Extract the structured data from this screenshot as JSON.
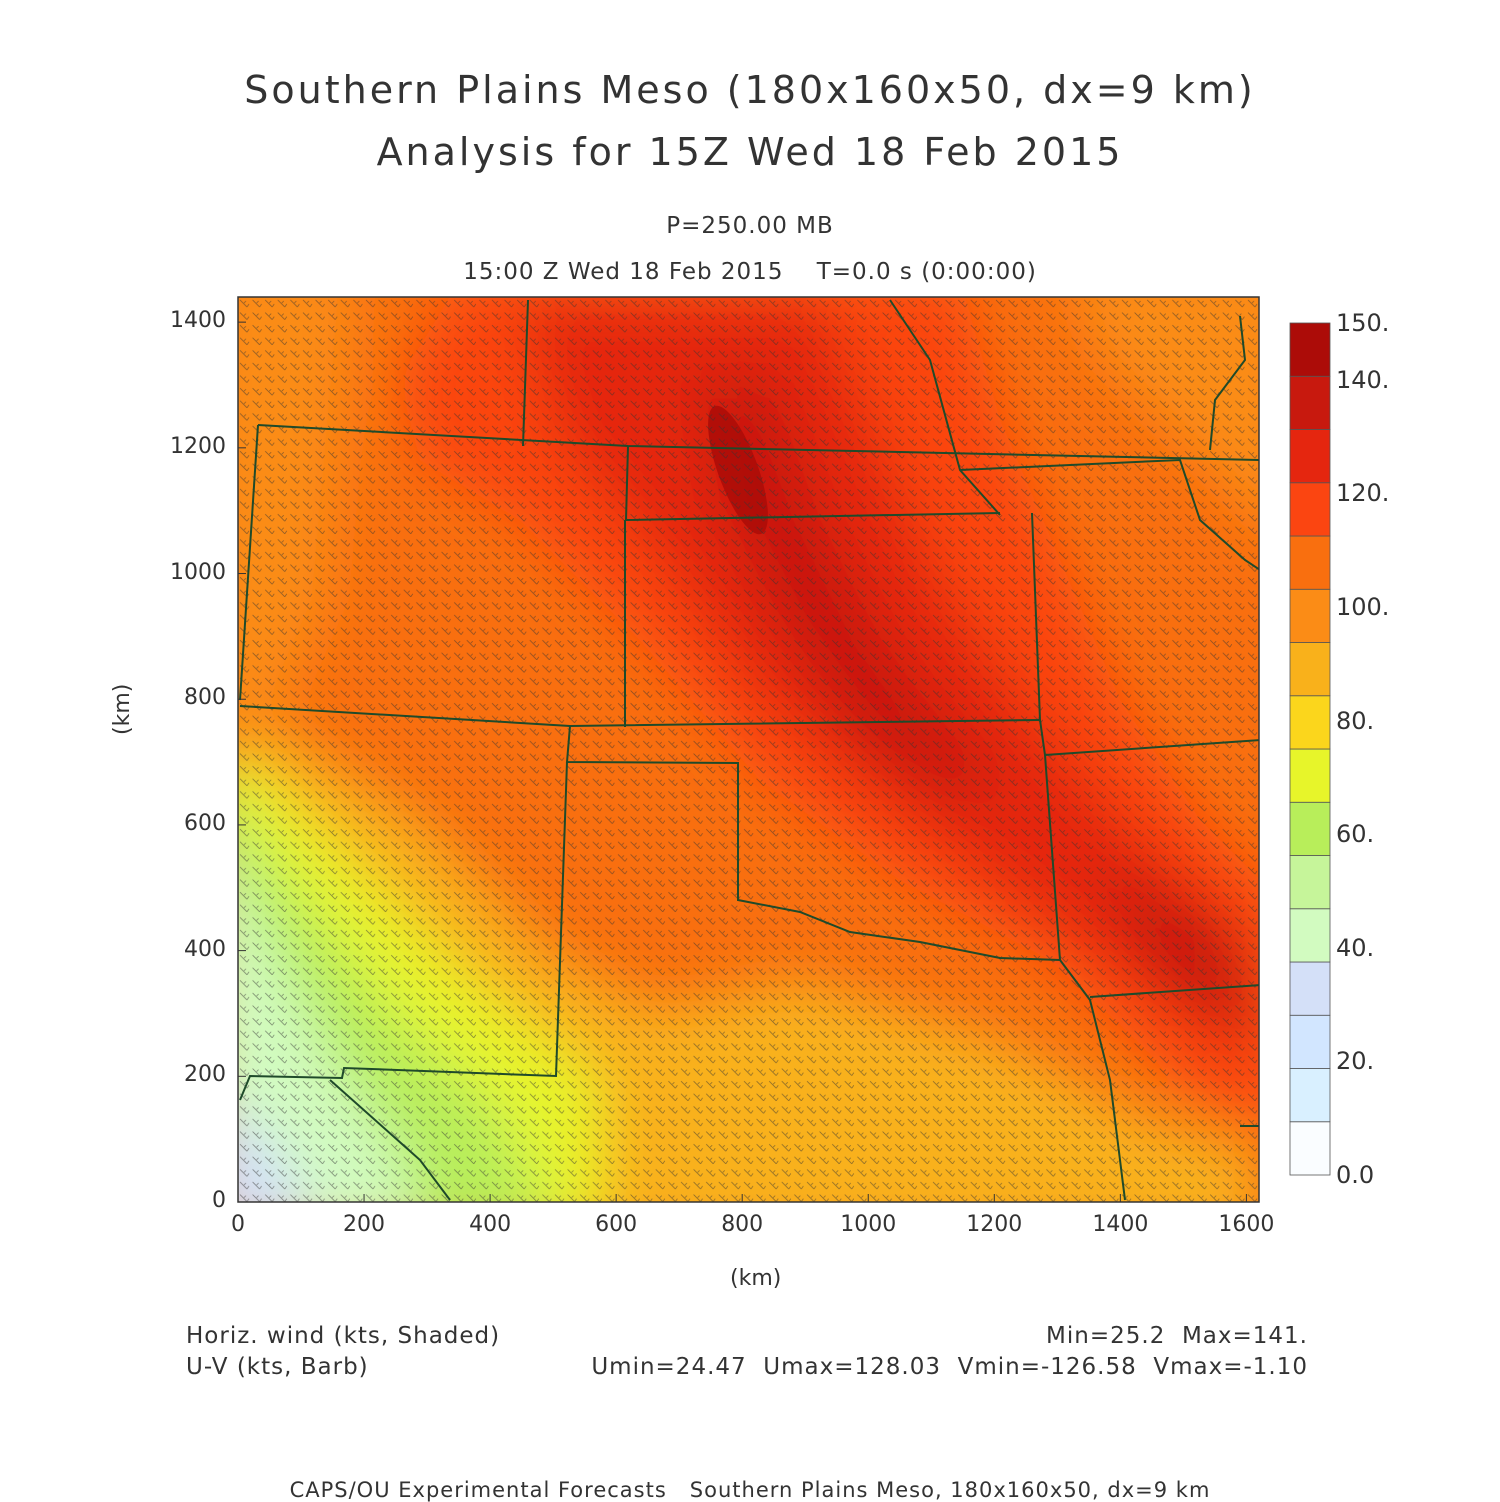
{
  "header": {
    "title_line1": "Southern Plains Meso (180x160x50, dx=9 km)",
    "title_line2": "Analysis for 15Z Wed 18 Feb 2015",
    "level": "P=250.00 MB",
    "time": "15:00 Z Wed 18 Feb 2015    T=0.0 s (0:00:00)"
  },
  "axes": {
    "x_label": "(km)",
    "y_label": "(km)",
    "x_ticks": [
      "0",
      "200",
      "400",
      "600",
      "800",
      "1000",
      "1200",
      "1400",
      "1600"
    ],
    "y_ticks": [
      "0",
      "200",
      "400",
      "600",
      "800",
      "1000",
      "1200",
      "1400"
    ],
    "x_range": [
      0,
      1620
    ],
    "y_range": [
      0,
      1440
    ]
  },
  "colorbar": {
    "labels": [
      "150.",
      "140.",
      "120.",
      "100.",
      "80.",
      "60.",
      "40.",
      "20.",
      "0.0"
    ],
    "colors": [
      "#fafdff",
      "#d9f0ff",
      "#d2e6ff",
      "#d4e0f8",
      "#d2fbc0",
      "#c6f59a",
      "#b8ee5a",
      "#e7f52a",
      "#fbd61c",
      "#f9b11b",
      "#fb8c16",
      "#f96f0f",
      "#fb4511",
      "#e5260f",
      "#c8190e",
      "#ac0c08"
    ]
  },
  "footer": {
    "field1": "Horiz. wind (kts, Shaded)",
    "field2": "U-V (kts, Barb)",
    "minmax": "Min=25.2  Max=141.",
    "uv_stats": "Umin=24.47  Umax=128.03  Vmin=-126.58  Vmax=-1.10",
    "credit": "CAPS/OU Experimental Forecasts   Southern Plains Meso, 180x160x50, dx=9 km"
  }
}
